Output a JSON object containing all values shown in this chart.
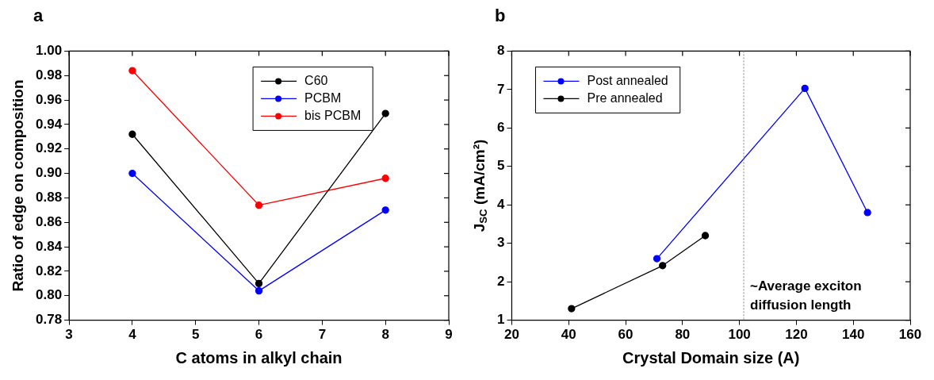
{
  "chart_data": [
    {
      "type": "line",
      "title": "a",
      "xlabel": "C atoms in alkyl chain",
      "ylabel": "Ratio of edge on composition",
      "x": [
        4,
        6,
        8
      ],
      "xlim": [
        3,
        9
      ],
      "xticks": [
        3,
        4,
        5,
        6,
        7,
        8,
        9
      ],
      "ylim": [
        0.78,
        1.0
      ],
      "yticks": [
        0.78,
        {
          "value": 0.8,
          "label": "0.80"
        },
        0.82,
        0.84,
        0.86,
        0.88,
        {
          "value": 0.9,
          "label": "0.90"
        },
        0.92,
        0.94,
        0.96,
        0.98,
        {
          "value": 1.0,
          "label": "1.00"
        }
      ],
      "marker": "circle",
      "line_style": "solid",
      "legend": "top right",
      "series": [
        {
          "name": "C60",
          "color": "#000000",
          "values": [
            0.932,
            0.81,
            0.949
          ]
        },
        {
          "name": "PCBM",
          "color": "#0000ff",
          "values": [
            0.9,
            0.804,
            0.87
          ]
        },
        {
          "name": "bis PCBM",
          "color": "#ff0000",
          "values": [
            0.984,
            0.874,
            0.896
          ]
        }
      ]
    },
    {
      "type": "line",
      "title": "b",
      "xlabel": "Crystal Domain size (A)",
      "ylabel": "J$_{SC}$ (mA/cm²)",
      "xlim": [
        20,
        160
      ],
      "xticks": [
        20,
        40,
        60,
        80,
        100,
        120,
        140,
        160
      ],
      "ylim": [
        1,
        8
      ],
      "yticks": [
        1,
        2,
        3,
        4,
        5,
        6,
        7,
        8
      ],
      "marker": "circle",
      "line_style": "solid",
      "legend": "top left",
      "series": [
        {
          "name": "Post annealed",
          "color": "#0000ff",
          "x": [
            71,
            123,
            145
          ],
          "values": [
            2.6,
            7.03,
            3.8
          ]
        },
        {
          "name": "Pre annealed",
          "color": "#000000",
          "x": [
            41,
            73,
            88
          ],
          "values": [
            1.3,
            2.42,
            3.2
          ]
        }
      ],
      "ref_lines": [
        {
          "axis": "x",
          "value": 101.5,
          "label": "~Average exciton diffusion length",
          "color": "#808080",
          "line_style": "dotted"
        }
      ]
    }
  ]
}
